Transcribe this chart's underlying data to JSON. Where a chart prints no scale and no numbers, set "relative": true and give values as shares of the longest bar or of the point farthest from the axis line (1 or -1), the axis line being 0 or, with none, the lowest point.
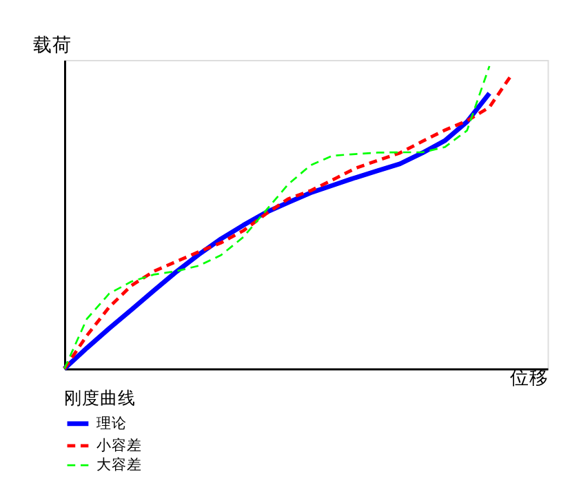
{
  "chart_data": {
    "type": "line",
    "relative": true,
    "xlabel": "位移",
    "ylabel": "载荷",
    "legend_title": "刚度曲线",
    "legend": "bottom left",
    "tick_labels": false,
    "grid": false,
    "categories": [
      null,
      null,
      null,
      null,
      null,
      null,
      null,
      null,
      null,
      null,
      null,
      null,
      null,
      null,
      null,
      null,
      null,
      null,
      null,
      null,
      null
    ],
    "series": [
      {
        "name": "理论",
        "color": "#0000ff",
        "line_style": "solid",
        "values": [
          0,
          0.068,
          0.133,
          0.195,
          0.258,
          0.32,
          0.377,
          0.429,
          0.474,
          0.516,
          0.549,
          0.581,
          0.606,
          0.631,
          0.654,
          0.677,
          0.713,
          0.753,
          0.816,
          0.91,
          null
        ]
      },
      {
        "name": "小容差",
        "color": "#ff0000",
        "line_style": "dashed",
        "values": [
          0,
          0.109,
          0.203,
          0.275,
          0.322,
          0.354,
          0.386,
          0.416,
          0.456,
          0.511,
          0.561,
          0.588,
          0.624,
          0.662,
          0.688,
          0.713,
          0.751,
          0.788,
          0.819,
          0.864,
          0.972
        ]
      },
      {
        "name": "大容差",
        "color": "#00ff00",
        "line_style": "dashed",
        "values": [
          0,
          0.164,
          0.248,
          0.288,
          0.311,
          0.322,
          0.34,
          0.375,
          0.435,
          0.522,
          0.609,
          0.672,
          0.704,
          0.709,
          0.714,
          0.715,
          0.715,
          0.732,
          0.787,
          1,
          null
        ]
      }
    ]
  }
}
